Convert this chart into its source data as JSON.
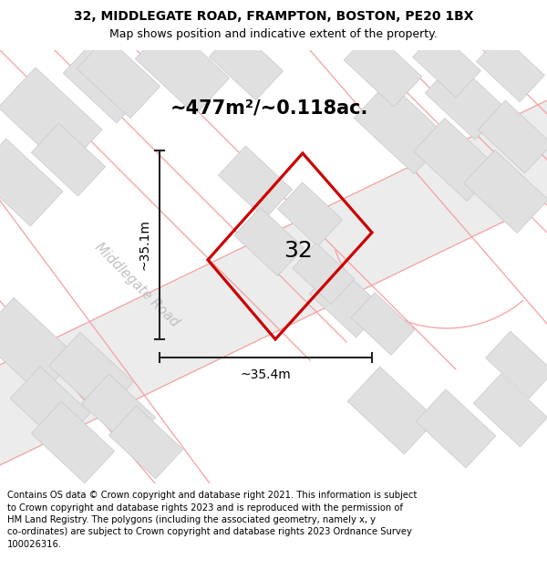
{
  "title_line1": "32, MIDDLEGATE ROAD, FRAMPTON, BOSTON, PE20 1BX",
  "title_line2": "Map shows position and indicative extent of the property.",
  "area_text": "~477m²/~0.118ac.",
  "label_32": "32",
  "dim_vertical": "~35.1m",
  "dim_horizontal": "~35.4m",
  "road_label": "Middlegate Road",
  "footer_lines": [
    "Contains OS data © Crown copyright and database right 2021. This information is subject",
    "to Crown copyright and database rights 2023 and is reproduced with the permission of",
    "HM Land Registry. The polygons (including the associated geometry, namely x, y",
    "co-ordinates) are subject to Crown copyright and database rights 2023 Ordnance Survey",
    "100026316."
  ],
  "map_bg": "#ffffff",
  "building_fill": "#e0e0e0",
  "building_edge": "#c8c8c8",
  "road_fill": "#eeeeee",
  "road_outline_color": "#f5a0a0",
  "plot_edge": "#cc0000",
  "dim_line_color": "#222222",
  "road_label_color": "#c0c0c0",
  "footer_fontsize": 7.2,
  "header_fontsize1": 10,
  "header_fontsize2": 9
}
